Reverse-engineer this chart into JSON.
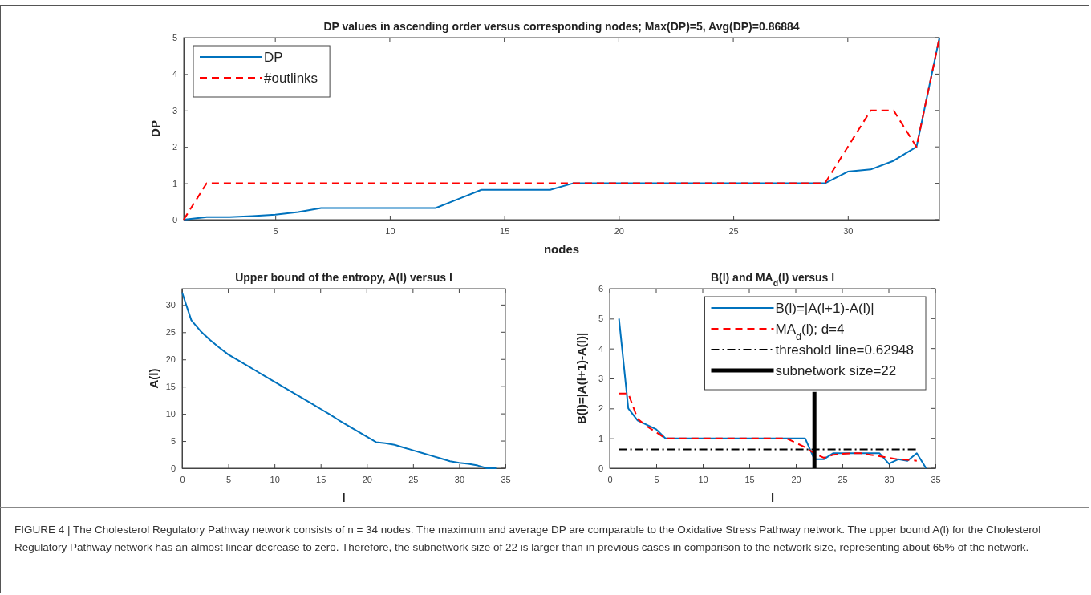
{
  "chart_data": [
    {
      "type": "line",
      "title": "DP values in ascending order versus corresponding nodes; Max(DP)=5, Avg(DP)=0.86884",
      "xlabel": "nodes",
      "ylabel": "DP",
      "x": [
        1,
        2,
        3,
        4,
        5,
        6,
        7,
        8,
        9,
        10,
        11,
        12,
        13,
        14,
        15,
        16,
        17,
        18,
        19,
        20,
        21,
        22,
        23,
        24,
        25,
        26,
        27,
        28,
        29,
        30,
        31,
        32,
        33,
        34
      ],
      "series": [
        {
          "name": "DP",
          "color": "#0072bd",
          "line_style": "solid",
          "values": [
            0,
            0.07,
            0.07,
            0.1,
            0.14,
            0.21,
            0.32,
            0.32,
            0.32,
            0.32,
            0.32,
            0.32,
            0.57,
            0.82,
            0.82,
            0.82,
            0.82,
            1,
            1,
            1,
            1,
            1,
            1,
            1,
            1,
            1,
            1,
            1,
            1,
            1.32,
            1.38,
            1.62,
            2,
            5
          ]
        },
        {
          "name": "#outlinks",
          "color": "#ff0000",
          "line_style": "dashed",
          "values": [
            0,
            1,
            1,
            1,
            1,
            1,
            1,
            1,
            1,
            1,
            1,
            1,
            1,
            1,
            1,
            1,
            1,
            1,
            1,
            1,
            1,
            1,
            1,
            1,
            1,
            1,
            1,
            1,
            1,
            2,
            3,
            3,
            2,
            5
          ]
        }
      ],
      "xlim": [
        1,
        34
      ],
      "xticks": [
        5,
        10,
        15,
        20,
        25,
        30
      ],
      "ylim": [
        0,
        5
      ],
      "yticks": [
        0,
        1,
        2,
        3,
        4,
        5
      ],
      "legend": "top left",
      "annotations": [
        "FIGURE 4 | The Cholesterol Regulatory Pathway network consists of n = 34 nodes. The maximum and average DP are comparable to the Oxidative Stress Pathway network. The upper bound A(l) for the Cholesterol Regulatory Pathway network has an almost linear decrease to zero. Therefore, the subnetwork size of 22 is larger than in previous cases in comparison to the network size, representing about 65% of the network."
      ]
    },
    {
      "type": "line",
      "title": "Upper bound of the entropy, A(l) versus l",
      "xlabel": "l",
      "ylabel": "A(l)",
      "x": [
        0,
        1,
        2,
        3,
        4,
        5,
        6,
        7,
        8,
        9,
        10,
        11,
        12,
        13,
        14,
        15,
        16,
        17,
        18,
        19,
        20,
        21,
        22,
        23,
        24,
        25,
        26,
        27,
        28,
        29,
        30,
        31,
        32,
        33,
        34
      ],
      "series": [
        {
          "color": "#0072bd",
          "line_style": "solid",
          "values": [
            32.3,
            27.2,
            25.2,
            23.6,
            22.2,
            20.9,
            19.9,
            18.9,
            17.9,
            16.9,
            15.9,
            14.9,
            13.9,
            12.9,
            11.9,
            10.9,
            9.9,
            8.8,
            7.8,
            6.8,
            5.8,
            4.8,
            4.6,
            4.3,
            3.8,
            3.3,
            2.8,
            2.3,
            1.8,
            1.3,
            1.0,
            0.8,
            0.5,
            0,
            0
          ]
        }
      ],
      "xlim": [
        0,
        35
      ],
      "xticks": [
        0,
        5,
        10,
        15,
        20,
        25,
        30,
        35
      ],
      "ylim": [
        0,
        33
      ],
      "yticks": [
        0,
        5,
        10,
        15,
        20,
        25,
        30
      ]
    },
    {
      "type": "line",
      "title": "B(l) and MA$_{d}$(l) versus l",
      "xlabel": "l",
      "ylabel": "B(l)=|A(l+1)-A(l)|",
      "series": [
        {
          "name": "B(l)=|A(l+1)-A(l)|",
          "color": "#0072bd",
          "line_style": "solid",
          "x": [
            1,
            2,
            3,
            4,
            5,
            6,
            7,
            8,
            9,
            10,
            11,
            12,
            13,
            14,
            15,
            16,
            17,
            18,
            19,
            20,
            21,
            22,
            23,
            24,
            25,
            26,
            27,
            28,
            29,
            30,
            31,
            32,
            33,
            34
          ],
          "values": [
            5,
            2,
            1.6,
            1.45,
            1.3,
            1,
            1,
            1,
            1,
            1,
            1,
            1,
            1,
            1,
            1,
            1,
            1,
            1,
            1,
            1,
            1,
            0.3,
            0.3,
            0.5,
            0.5,
            0.5,
            0.5,
            0.5,
            0.5,
            0.15,
            0.3,
            0.25,
            0.5,
            0
          ]
        },
        {
          "name": "MA$_{d}$(l); d=4",
          "color": "#ff0000",
          "line_style": "dashed",
          "x": [
            1,
            2,
            3,
            4,
            5,
            6,
            7,
            8,
            9,
            10,
            11,
            12,
            13,
            14,
            15,
            16,
            17,
            18,
            19,
            20,
            21,
            22,
            23,
            24,
            25,
            26,
            27,
            28,
            29,
            30,
            31,
            32,
            33
          ],
          "values": [
            2.5,
            2.5,
            1.65,
            1.4,
            1.2,
            1,
            1,
            1,
            1,
            1,
            1,
            1,
            1,
            1,
            1,
            1,
            1,
            1,
            1,
            0.85,
            0.7,
            0.5,
            0.35,
            0.45,
            0.48,
            0.5,
            0.5,
            0.45,
            0.4,
            0.35,
            0.3,
            0.28,
            0.25
          ]
        },
        {
          "name": "threshold line=0.62948",
          "color": "#000000",
          "line_style": "dashdot",
          "x": [
            1,
            33
          ],
          "values": [
            0.63,
            0.63
          ]
        },
        {
          "name": "subnetwork size=22",
          "color": "#000000",
          "line_style": "solid",
          "x": [
            22,
            22
          ],
          "values": [
            0,
            2.55
          ]
        }
      ],
      "xlim": [
        0,
        35
      ],
      "xticks": [
        0,
        5,
        10,
        15,
        20,
        25,
        30,
        35
      ],
      "ylim": [
        0,
        6
      ],
      "yticks": [
        0,
        1,
        2,
        3,
        4,
        5,
        6
      ],
      "legend": "top right"
    }
  ]
}
